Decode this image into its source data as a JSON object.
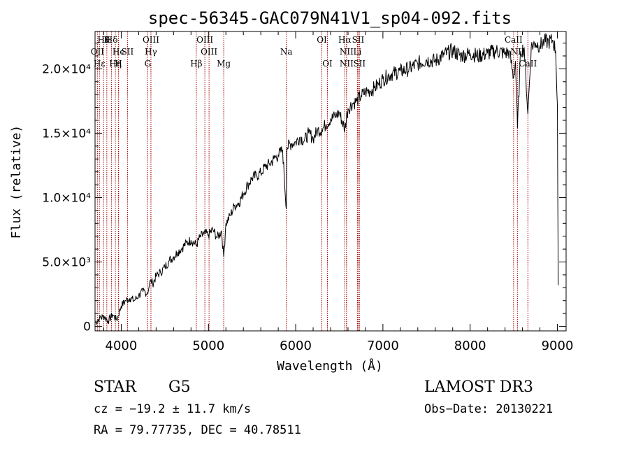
{
  "chart_data": {
    "type": "line",
    "title": "spec-56345-GAC079N41V1_sp04-092.fits",
    "xlabel": "Wavelength (Å)",
    "ylabel": "Flux (relative)",
    "xlim": [
      3700,
      9100
    ],
    "ylim": [
      -350,
      22900
    ],
    "xticks": [
      {
        "value": 4000,
        "label": "4000"
      },
      {
        "value": 5000,
        "label": "5000"
      },
      {
        "value": 6000,
        "label": "6000"
      },
      {
        "value": 7000,
        "label": "7000"
      },
      {
        "value": 8000,
        "label": "8000"
      },
      {
        "value": 9000,
        "label": "9000"
      }
    ],
    "yticks": [
      {
        "value": 0,
        "label": "0"
      },
      {
        "value": 5000,
        "label": "5.0×10³"
      },
      {
        "value": 10000,
        "label": "1.0×10⁴"
      },
      {
        "value": 15000,
        "label": "1.5×10⁴"
      },
      {
        "value": 20000,
        "label": "2.0×10⁴"
      }
    ],
    "series": [
      {
        "name": "flux",
        "x": [
          3700,
          3750,
          3800,
          3850,
          3900,
          3950,
          4000,
          4050,
          4100,
          4150,
          4200,
          4250,
          4300,
          4320,
          4340,
          4360,
          4400,
          4450,
          4500,
          4550,
          4600,
          4650,
          4700,
          4750,
          4800,
          4861,
          4900,
          4950,
          5000,
          5050,
          5100,
          5150,
          5175,
          5200,
          5250,
          5300,
          5350,
          5400,
          5450,
          5500,
          5550,
          5600,
          5650,
          5700,
          5750,
          5800,
          5850,
          5893,
          5900,
          5950,
          6000,
          6050,
          6100,
          6150,
          6200,
          6250,
          6300,
          6350,
          6400,
          6450,
          6500,
          6563,
          6600,
          6650,
          6700,
          6750,
          6800,
          6850,
          6900,
          6950,
          7000,
          7100,
          7200,
          7300,
          7400,
          7500,
          7600,
          7700,
          7800,
          7900,
          8000,
          8100,
          8200,
          8300,
          8400,
          8450,
          8498,
          8520,
          8542,
          8580,
          8620,
          8662,
          8700,
          8750,
          8800,
          8850,
          8900,
          8950,
          8980,
          9000,
          9010
        ],
        "y": [
          300,
          600,
          800,
          400,
          900,
          500,
          1600,
          2000,
          2200,
          2000,
          2400,
          2700,
          2600,
          3100,
          3600,
          3300,
          3900,
          4200,
          4600,
          5100,
          5400,
          5800,
          6100,
          6500,
          6700,
          6300,
          6900,
          7200,
          7100,
          7500,
          6900,
          7400,
          5400,
          8000,
          8600,
          9400,
          9600,
          10300,
          11000,
          11500,
          11700,
          11900,
          12400,
          12600,
          13000,
          13300,
          13700,
          9100,
          13900,
          14200,
          14300,
          14700,
          14400,
          15000,
          14600,
          15200,
          15300,
          15700,
          16100,
          16300,
          16600,
          15300,
          16900,
          17300,
          17500,
          17900,
          18200,
          18300,
          18500,
          18800,
          19200,
          19600,
          19800,
          20000,
          20400,
          20700,
          20600,
          21100,
          21400,
          21000,
          21200,
          21000,
          21200,
          21400,
          21200,
          21300,
          19300,
          20600,
          15400,
          21400,
          21600,
          16500,
          21700,
          22000,
          21800,
          22100,
          22100,
          22200,
          21400,
          17200,
          3200
        ]
      }
    ],
    "line_markers": [
      {
        "wavelength": 3798,
        "label": "Hθ",
        "row": 1
      },
      {
        "wavelength": 3835,
        "label": "K",
        "row": 1
      },
      {
        "wavelength": 3889,
        "label": "Hδ",
        "row": 1
      },
      {
        "wavelength": 4341,
        "label": "OIII",
        "row": 1
      },
      {
        "wavelength": 4959,
        "label": "OIII",
        "row": 1
      },
      {
        "wavelength": 6300,
        "label": "OI",
        "row": 1
      },
      {
        "wavelength": 6563,
        "label": "Hα",
        "row": 1
      },
      {
        "wavelength": 6716,
        "label": "SII",
        "row": 1
      },
      {
        "wavelength": 8498,
        "label": "CaII",
        "row": 1
      },
      {
        "wavelength": 3727,
        "label": "OII",
        "row": 2
      },
      {
        "wavelength": 3970,
        "label": "He",
        "row": 2
      },
      {
        "wavelength": 4072,
        "label": "SII",
        "row": 2
      },
      {
        "wavelength": 4340,
        "label": "Hγ",
        "row": 2
      },
      {
        "wavelength": 5007,
        "label": "OIII",
        "row": 2
      },
      {
        "wavelength": 6583,
        "label": "NII",
        "row": 2
      },
      {
        "wavelength": 6708,
        "label": "Li",
        "row": 2
      },
      {
        "wavelength": 8542,
        "label": "NII",
        "row": 2
      },
      {
        "wavelength": 3750,
        "label": "Hε",
        "row": 3
      },
      {
        "wavelength": 3933,
        "label": "Hη",
        "row": 3
      },
      {
        "wavelength": 3968,
        "label": "H",
        "row": 3
      },
      {
        "wavelength": 4304,
        "label": "G",
        "row": 3
      },
      {
        "wavelength": 4861,
        "label": "Hβ",
        "row": 3
      },
      {
        "wavelength": 5175,
        "label": "Mg",
        "row": 3
      },
      {
        "wavelength": 5893,
        "label": "Na",
        "row": 2
      },
      {
        "wavelength": 6364,
        "label": "OI",
        "row": 3
      },
      {
        "wavelength": 6583,
        "label": "NII",
        "row": 3
      },
      {
        "wavelength": 6731,
        "label": "SII",
        "row": 3
      },
      {
        "wavelength": 8662,
        "label": "CaII",
        "row": 3
      }
    ]
  },
  "info": {
    "object_class": "STAR",
    "subclass": "G5",
    "survey": "LAMOST DR3",
    "redshift": "cz = −19.2 ± 11.7 km/s",
    "obs_date": "Obs−Date: 20130221",
    "coords": "RA =  79.77735, DEC =  40.78511"
  },
  "colors": {
    "spectrum": "#000000",
    "marker": "#a00000",
    "axis": "#000000"
  }
}
